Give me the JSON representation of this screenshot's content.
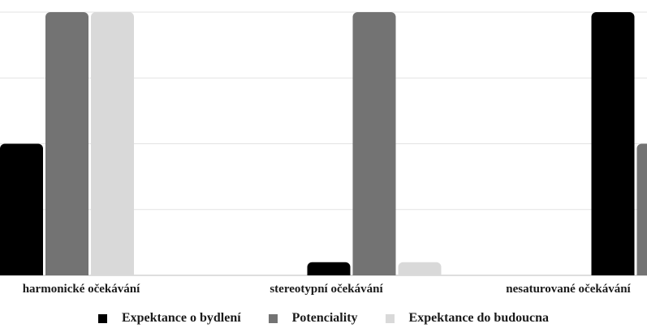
{
  "chart_data": {
    "type": "bar",
    "categories": [
      "harmonické očekávání",
      "stereotypní očekávání",
      "nesaturované očekávání"
    ],
    "series": [
      {
        "name": "Expektance o bydlení",
        "color": "#000000",
        "values": [
          2,
          0.2,
          4
        ]
      },
      {
        "name": "Potenciality",
        "color": "#737373",
        "values": [
          4,
          4,
          2
        ]
      },
      {
        "name": "Expektance do budoucna",
        "color": "#d9d9d9",
        "values": [
          4,
          0.2,
          0.2
        ]
      }
    ],
    "ylim": [
      0,
      4
    ],
    "grid": true,
    "legend_position": "bottom"
  }
}
